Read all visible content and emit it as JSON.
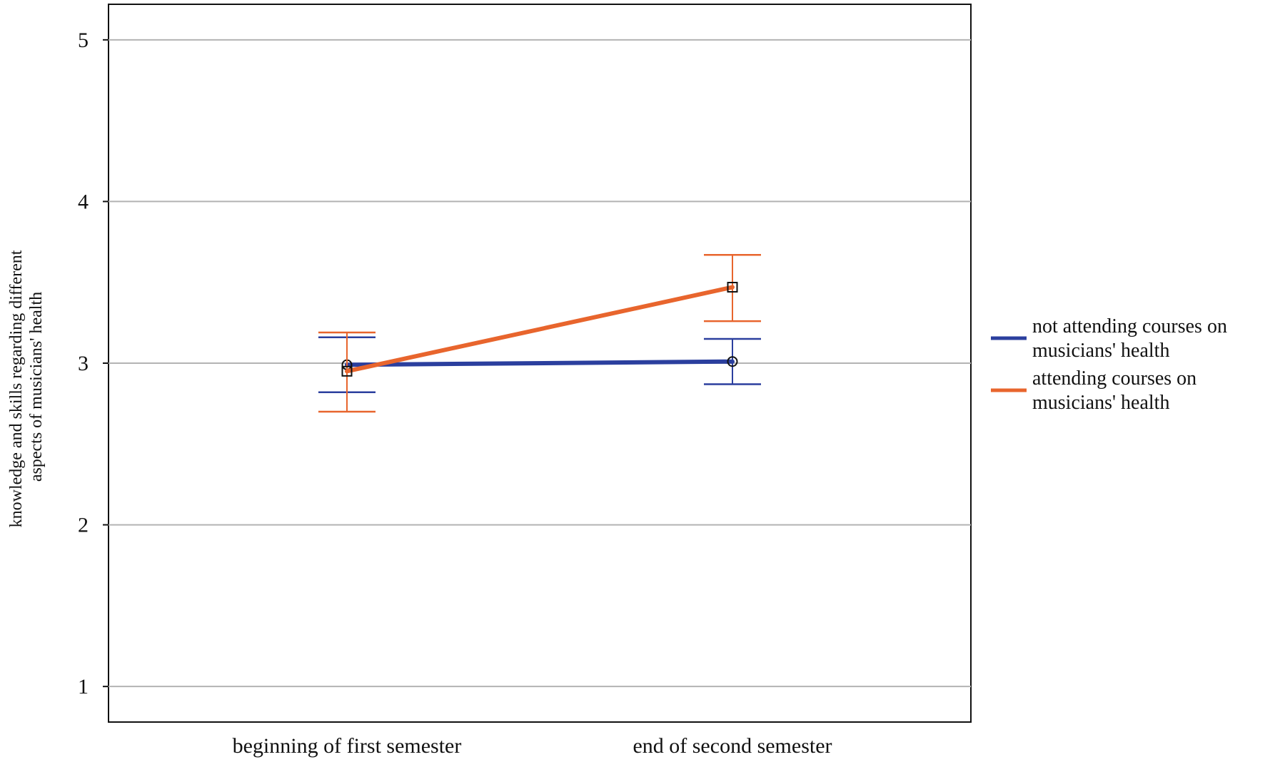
{
  "chart_data": {
    "type": "line",
    "categories": [
      "beginning of first semester",
      "end of second semester"
    ],
    "ylabel": [
      "knowledge and skills regarding different",
      "aspects of musicians' health"
    ],
    "ylim": [
      0.78,
      5.22
    ],
    "yticks": [
      "1",
      "2",
      "3",
      "4",
      "5"
    ],
    "grid": true,
    "legend_position": "right",
    "series": [
      {
        "name": [
          "not attending courses on",
          "musicians' health"
        ],
        "color": "#2b3f9e",
        "marker": "circle",
        "values": [
          2.99,
          3.01
        ],
        "ci_low": [
          2.82,
          2.87
        ],
        "ci_high": [
          3.16,
          3.15
        ]
      },
      {
        "name": [
          "attending courses on",
          "musicians' health"
        ],
        "color": "#e8652d",
        "marker": "square",
        "values": [
          2.95,
          3.47
        ],
        "ci_low": [
          2.7,
          3.26
        ],
        "ci_high": [
          3.19,
          3.67
        ]
      }
    ]
  }
}
